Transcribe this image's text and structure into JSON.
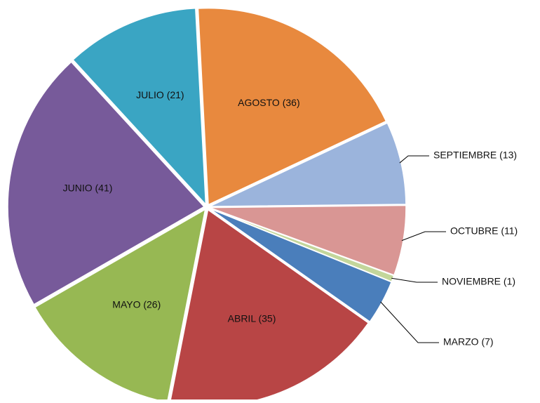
{
  "chart_data": {
    "type": "pie",
    "categories": [
      "AGOSTO (36)",
      "SEPTIEMBRE (13)",
      "OCTUBRE (11)",
      "NOVIEMBRE (1)",
      "MARZO (7)",
      "ABRIL (35)",
      "MAYO (26)",
      "JUNIO (41)",
      "JULIO (21)"
    ],
    "values": [
      36,
      13,
      11,
      1,
      7,
      35,
      26,
      41,
      21
    ],
    "colors": [
      "#e8893e",
      "#9bb4dc",
      "#d99694",
      "#c3d69b",
      "#4a7ebb",
      "#b84545",
      "#97b853",
      "#775a9a",
      "#3aa5c3"
    ]
  }
}
